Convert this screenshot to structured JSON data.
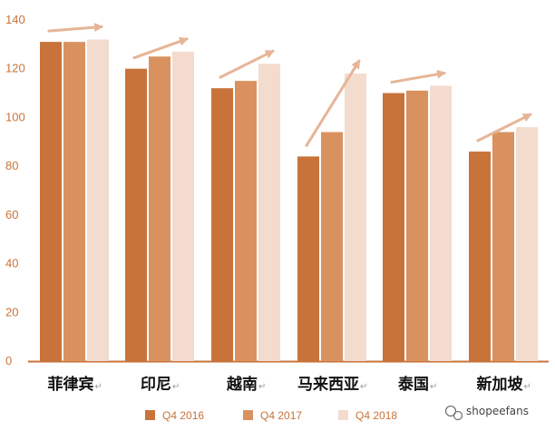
{
  "chart_data": {
    "type": "bar",
    "categories": [
      "菲律宾",
      "印尼",
      "越南",
      "马来西亚",
      "泰国",
      "新加坡"
    ],
    "series": [
      {
        "name": "Q4 2016",
        "color": "#c8733a",
        "values": [
          131,
          120,
          112,
          84,
          110,
          86
        ]
      },
      {
        "name": "Q4 2017",
        "color": "#d9925f",
        "values": [
          131,
          125,
          115,
          94,
          111,
          94
        ]
      },
      {
        "name": "Q4 2018",
        "color": "#f3dbcd",
        "values": [
          132,
          127,
          122,
          118,
          113,
          96
        ]
      }
    ],
    "ylim": [
      0,
      140
    ],
    "yticks": [
      0,
      20,
      40,
      60,
      80,
      100,
      120,
      140
    ],
    "legend_position": "bottom",
    "trend_arrows": true,
    "arrow_color": "#e6b596",
    "axis_color": "#c8733a"
  },
  "label_mark": "↵",
  "watermark": {
    "text": "shopeefans",
    "icon": "wechat-icon"
  }
}
